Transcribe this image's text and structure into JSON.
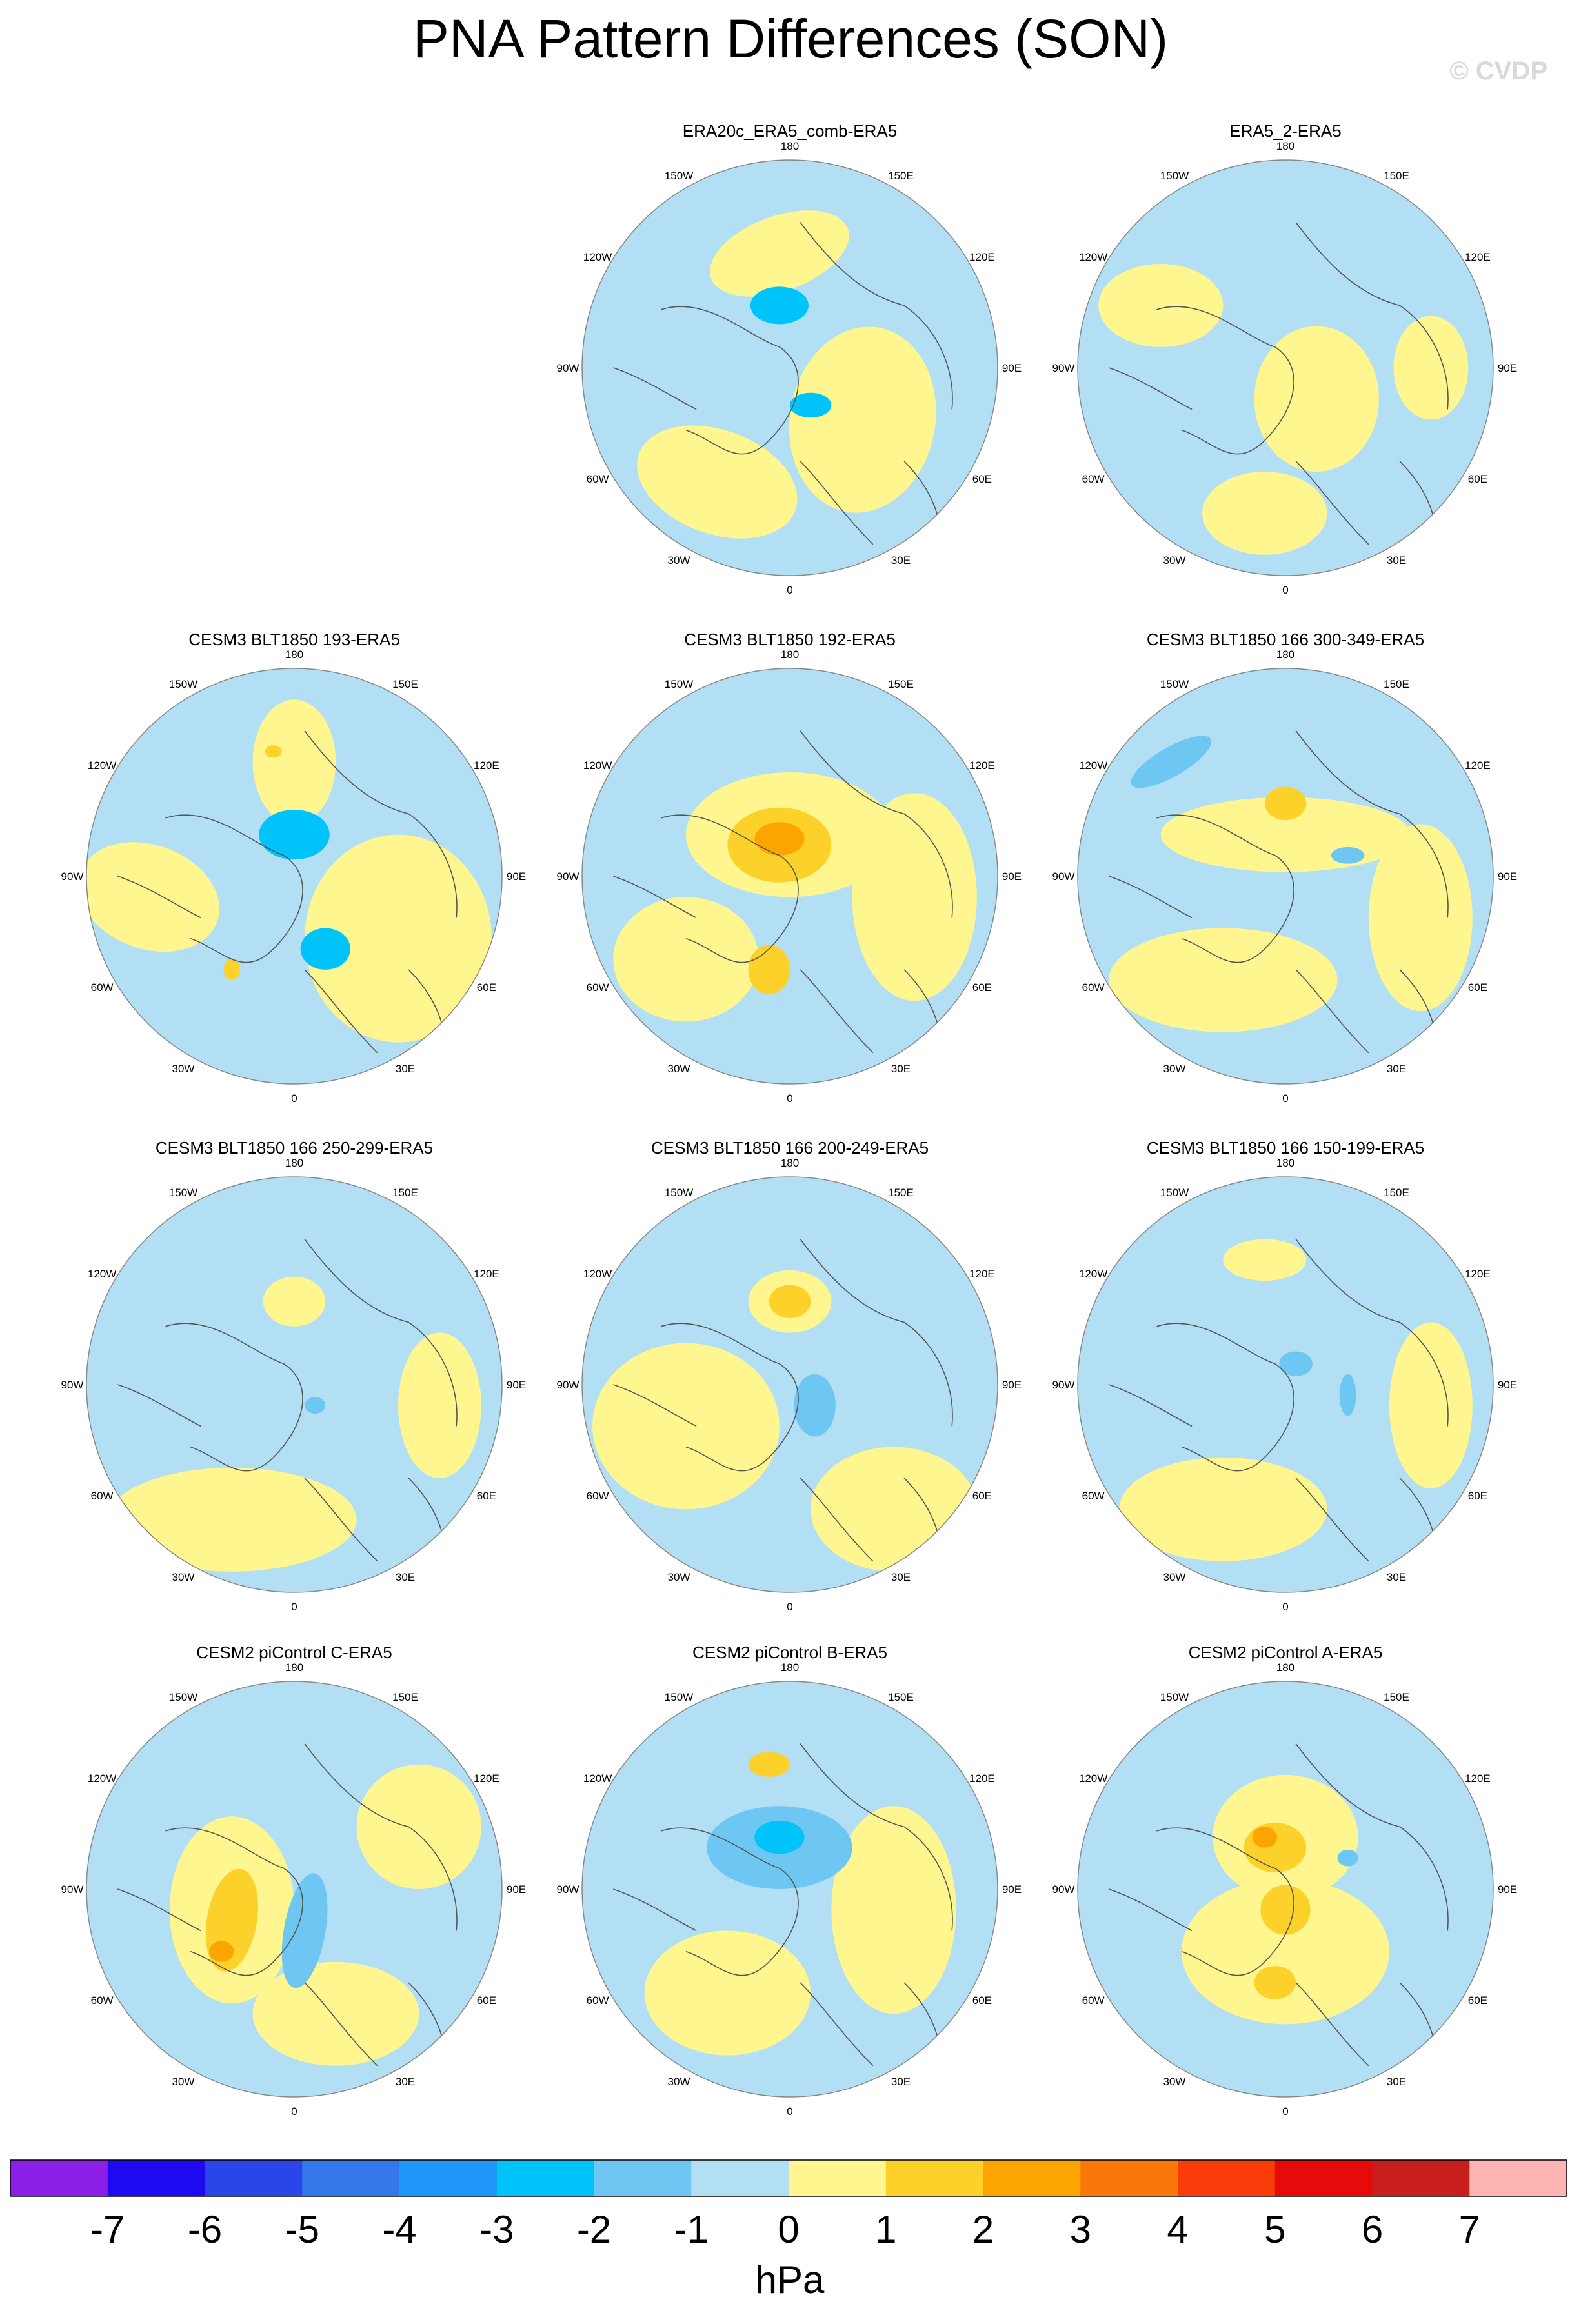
{
  "title": "PNA Pattern Differences (SON)",
  "watermark": "© CVDP",
  "longitude_labels": [
    "180",
    "150E",
    "120E",
    "90E",
    "60E",
    "30E",
    "0",
    "30W",
    "60W",
    "90W",
    "120W",
    "150W"
  ],
  "colors": {
    "ocean_land_fill_neg": "#b3dff5",
    "neutral_pos": "#fff68f",
    "coast": "#555555",
    "grid": "#888888"
  },
  "panels": [
    {
      "title": "ERA20c_ERA5_comb-ERA5",
      "empty": false
    },
    {
      "title": "ERA5_2-ERA5",
      "empty": false
    },
    {
      "title": "CESM3 BLT1850 193-ERA5",
      "empty": false
    },
    {
      "title": "CESM3 BLT1850 192-ERA5",
      "empty": false
    },
    {
      "title": "CESM3 BLT1850 166 300-349-ERA5",
      "empty": false
    },
    {
      "title": "CESM3 BLT1850 166 250-299-ERA5",
      "empty": false
    },
    {
      "title": "CESM3 BLT1850 166 200-249-ERA5",
      "empty": false
    },
    {
      "title": "CESM3 BLT1850 166 150-199-ERA5",
      "empty": false
    },
    {
      "title": "CESM2 piControl C-ERA5",
      "empty": false
    },
    {
      "title": "CESM2 piControl B-ERA5",
      "empty": false
    },
    {
      "title": "CESM2 piControl A-ERA5",
      "empty": false
    }
  ],
  "colorbar": {
    "colors": [
      "#8c1fe6",
      "#1e0af0",
      "#2a46e8",
      "#3478ea",
      "#1e96fa",
      "#00c3fa",
      "#6ec6f2",
      "#b3dff5",
      "#fff68f",
      "#fcd22a",
      "#fca500",
      "#fa780a",
      "#fa3c0a",
      "#e60a0a",
      "#c81e1e",
      "#ffb4b4"
    ],
    "ticks": [
      "-7",
      "-6",
      "-5",
      "-4",
      "-3",
      "-2",
      "-1",
      "0",
      "1",
      "2",
      "3",
      "4",
      "5",
      "6",
      "7"
    ],
    "unit": "hPa"
  }
}
